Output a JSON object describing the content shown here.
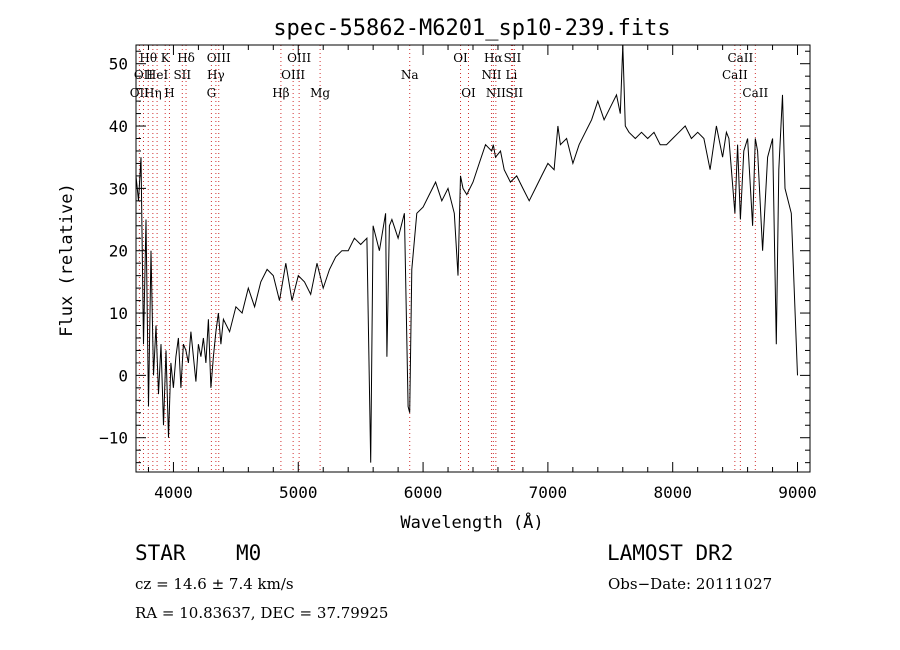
{
  "chart_data": {
    "type": "line",
    "title": "spec-55862-M6201_sp10-239.fits",
    "xlabel": "Wavelength (Å)",
    "ylabel": "Flux (relative)",
    "xlim": [
      3700,
      9100
    ],
    "ylim": [
      -15.5,
      53
    ],
    "xticks": [
      4000,
      5000,
      6000,
      7000,
      8000,
      9000
    ],
    "xtick_labels": [
      "4000",
      "5000",
      "6000",
      "7000",
      "8000",
      "9000"
    ],
    "yticks": [
      -10,
      0,
      10,
      20,
      30,
      40,
      50
    ],
    "ytick_labels": [
      "−10",
      "0",
      "10",
      "20",
      "30",
      "40",
      "50"
    ],
    "grid": false,
    "series": [
      {
        "x": [
          3700,
          3720,
          3740,
          3760,
          3780,
          3800,
          3820,
          3840,
          3860,
          3880,
          3900,
          3920,
          3940,
          3960,
          3980,
          4000,
          4020,
          4040,
          4060,
          4080,
          4100,
          4120,
          4140,
          4160,
          4180,
          4200,
          4220,
          4240,
          4260,
          4280,
          4300,
          4320,
          4340,
          4360,
          4380,
          4400,
          4450,
          4500,
          4550,
          4600,
          4650,
          4700,
          4750,
          4800,
          4850,
          4900,
          4950,
          5000,
          5050,
          5100,
          5150,
          5200,
          5250,
          5300,
          5350,
          5400,
          5450,
          5500,
          5550,
          5580,
          5600,
          5650,
          5700,
          5710,
          5730,
          5750,
          5800,
          5850,
          5880,
          5893,
          5910,
          5950,
          6000,
          6050,
          6100,
          6150,
          6200,
          6250,
          6280,
          6300,
          6320,
          6350,
          6400,
          6450,
          6500,
          6550,
          6563,
          6580,
          6620,
          6650,
          6700,
          6750,
          6800,
          6850,
          6900,
          6950,
          7000,
          7050,
          7080,
          7100,
          7150,
          7200,
          7250,
          7300,
          7350,
          7400,
          7450,
          7500,
          7550,
          7580,
          7600,
          7620,
          7650,
          7700,
          7750,
          7800,
          7850,
          7900,
          7950,
          8000,
          8050,
          8100,
          8150,
          8200,
          8250,
          8300,
          8350,
          8400,
          8430,
          8450,
          8498,
          8520,
          8542,
          8570,
          8600,
          8640,
          8662,
          8680,
          8720,
          8760,
          8800,
          8830,
          8850,
          8880,
          8900,
          8950,
          9000
        ],
        "y": [
          32,
          28,
          35,
          5,
          25,
          -5,
          20,
          0,
          8,
          -3,
          5,
          -8,
          4,
          -10,
          2,
          -2,
          3,
          6,
          -2,
          5,
          4,
          2,
          7,
          3,
          -1,
          5,
          3,
          6,
          2,
          9,
          -2,
          3,
          7,
          10,
          5,
          9,
          7,
          11,
          10,
          14,
          11,
          15,
          17,
          16,
          12,
          18,
          12,
          16,
          15,
          13,
          18,
          14,
          17,
          19,
          20,
          20,
          22,
          21,
          22,
          -14,
          24,
          20,
          26,
          3,
          24,
          25,
          22,
          26,
          -5,
          -6,
          17,
          26,
          27,
          29,
          31,
          28,
          30,
          26,
          16,
          32,
          30,
          29,
          31,
          34,
          37,
          36,
          37,
          35,
          36,
          33,
          31,
          32,
          30,
          28,
          30,
          32,
          34,
          33,
          40,
          37,
          38,
          34,
          37,
          39,
          41,
          44,
          41,
          43,
          45,
          42,
          53,
          40,
          39,
          38,
          39,
          38,
          39,
          37,
          37,
          38,
          39,
          40,
          38,
          39,
          38,
          33,
          40,
          35,
          39,
          38,
          26,
          37,
          25,
          36,
          38,
          24,
          38,
          36,
          20,
          35,
          38,
          5,
          33,
          45,
          30,
          26,
          0
        ]
      }
    ],
    "lines": [
      {
        "x": 3727,
        "label": "OII",
        "row": 2
      },
      {
        "x": 3760,
        "label": "OII",
        "row": 1
      },
      {
        "x": 3798,
        "label": "Hθ",
        "row": 0
      },
      {
        "x": 3835,
        "label": "Hη",
        "row": 2
      },
      {
        "x": 3869,
        "label": "HeI",
        "row": 1
      },
      {
        "x": 3934,
        "label": "K",
        "row": 0
      },
      {
        "x": 3968,
        "label": "H",
        "row": 2
      },
      {
        "x": 4071,
        "label": "SII",
        "row": 1
      },
      {
        "x": 4101,
        "label": "Hδ",
        "row": 0
      },
      {
        "x": 4304,
        "label": "G",
        "row": 2
      },
      {
        "x": 4340,
        "label": "Hγ",
        "row": 1
      },
      {
        "x": 4363,
        "label": "OIII",
        "row": 0
      },
      {
        "x": 4861,
        "label": "Hβ",
        "row": 2
      },
      {
        "x": 4959,
        "label": "OIII",
        "row": 1
      },
      {
        "x": 5007,
        "label": "OIII",
        "row": 0
      },
      {
        "x": 5175,
        "label": "Mg",
        "row": 2
      },
      {
        "x": 5893,
        "label": "Na",
        "row": 1
      },
      {
        "x": 6300,
        "label": "OI",
        "row": 0
      },
      {
        "x": 6364,
        "label": "OI",
        "row": 2
      },
      {
        "x": 6548,
        "label": "NII",
        "row": 1
      },
      {
        "x": 6563,
        "label": "Hα",
        "row": 0
      },
      {
        "x": 6583,
        "label": "NII",
        "row": 2
      },
      {
        "x": 6708,
        "label": "Li",
        "row": 1
      },
      {
        "x": 6716,
        "label": "SII",
        "row": 0
      },
      {
        "x": 6731,
        "label": "SII",
        "row": 2
      },
      {
        "x": 8498,
        "label": "CaII",
        "row": 1
      },
      {
        "x": 8542,
        "label": "CaII",
        "row": 0
      },
      {
        "x": 8662,
        "label": "CaII",
        "row": 2
      }
    ]
  },
  "info": {
    "object_class": "STAR",
    "subclass": "M0",
    "survey": "LAMOST DR2",
    "cz": "cz = 14.6 ± 7.4 km/s",
    "obs_date": "Obs−Date: 20111027",
    "coords": "RA =   10.83637, DEC =   37.79925"
  }
}
